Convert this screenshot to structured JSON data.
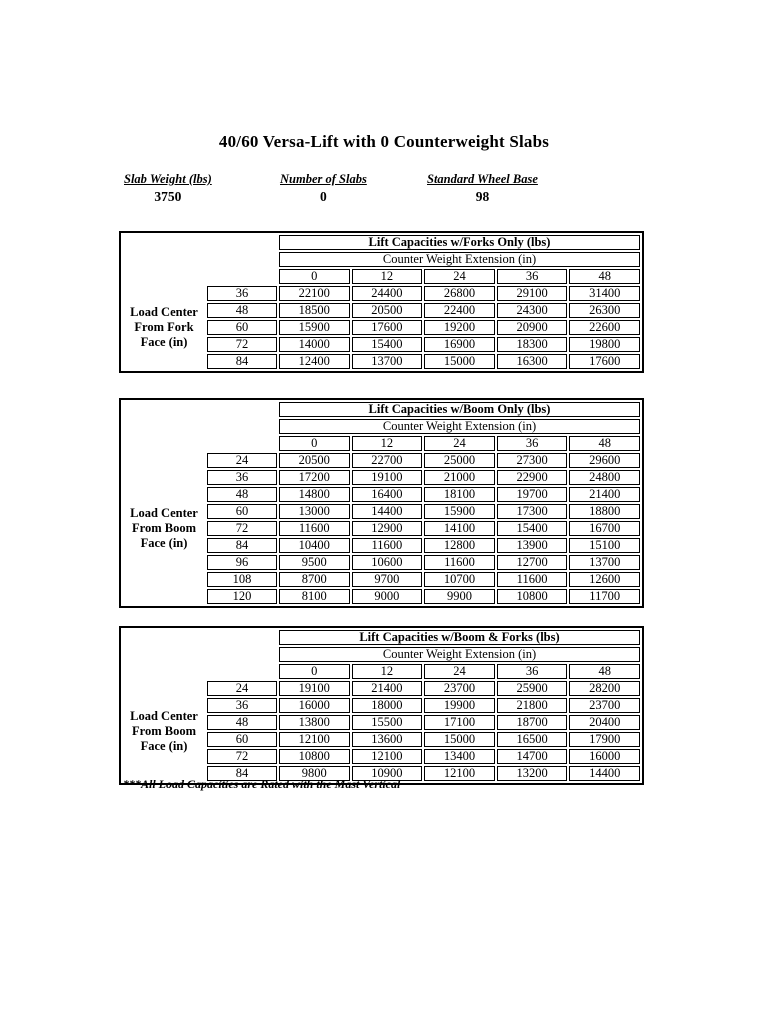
{
  "document": {
    "title": "40/60 Versa-Lift with 0 Counterweight Slabs",
    "footnote": "***All Load Capacities are Rated with the Mast Vertical"
  },
  "specs": [
    {
      "label": "Slab Weight (lbs)",
      "value": "3750"
    },
    {
      "label": "Number of Slabs",
      "value": "0"
    },
    {
      "label": "Standard Wheel Base",
      "value": "98"
    }
  ],
  "tables": [
    {
      "title": "Lift Capacities w/Forks Only (lbs)",
      "subtitle": "Counter Weight Extension (in)",
      "row_group_label_lines": [
        "Load Center",
        "From Fork",
        "Face (in)"
      ],
      "column_headers": [
        "0",
        "12",
        "24",
        "36",
        "48"
      ],
      "rows": [
        {
          "load_center": "36",
          "values": [
            "22100",
            "24400",
            "26800",
            "29100",
            "31400"
          ]
        },
        {
          "load_center": "48",
          "values": [
            "18500",
            "20500",
            "22400",
            "24300",
            "26300"
          ]
        },
        {
          "load_center": "60",
          "values": [
            "15900",
            "17600",
            "19200",
            "20900",
            "22600"
          ]
        },
        {
          "load_center": "72",
          "values": [
            "14000",
            "15400",
            "16900",
            "18300",
            "19800"
          ]
        },
        {
          "load_center": "84",
          "values": [
            "12400",
            "13700",
            "15000",
            "16300",
            "17600"
          ]
        }
      ]
    },
    {
      "title": "Lift Capacities w/Boom Only (lbs)",
      "subtitle": "Counter Weight Extension (in)",
      "row_group_label_lines": [
        "Load Center",
        "From Boom",
        "Face (in)"
      ],
      "column_headers": [
        "0",
        "12",
        "24",
        "36",
        "48"
      ],
      "rows": [
        {
          "load_center": "24",
          "values": [
            "20500",
            "22700",
            "25000",
            "27300",
            "29600"
          ]
        },
        {
          "load_center": "36",
          "values": [
            "17200",
            "19100",
            "21000",
            "22900",
            "24800"
          ]
        },
        {
          "load_center": "48",
          "values": [
            "14800",
            "16400",
            "18100",
            "19700",
            "21400"
          ]
        },
        {
          "load_center": "60",
          "values": [
            "13000",
            "14400",
            "15900",
            "17300",
            "18800"
          ]
        },
        {
          "load_center": "72",
          "values": [
            "11600",
            "12900",
            "14100",
            "15400",
            "16700"
          ]
        },
        {
          "load_center": "84",
          "values": [
            "10400",
            "11600",
            "12800",
            "13900",
            "15100"
          ]
        },
        {
          "load_center": "96",
          "values": [
            "9500",
            "10600",
            "11600",
            "12700",
            "13700"
          ]
        },
        {
          "load_center": "108",
          "values": [
            "8700",
            "9700",
            "10700",
            "11600",
            "12600"
          ]
        },
        {
          "load_center": "120",
          "values": [
            "8100",
            "9000",
            "9900",
            "10800",
            "11700"
          ]
        }
      ]
    },
    {
      "title": "Lift Capacities w/Boom & Forks (lbs)",
      "subtitle": "Counter Weight Extension (in)",
      "row_group_label_lines": [
        "Load Center",
        "From Boom",
        "Face (in)"
      ],
      "column_headers": [
        "0",
        "12",
        "24",
        "36",
        "48"
      ],
      "rows": [
        {
          "load_center": "24",
          "values": [
            "19100",
            "21400",
            "23700",
            "25900",
            "28200"
          ]
        },
        {
          "load_center": "36",
          "values": [
            "16000",
            "18000",
            "19900",
            "21800",
            "23700"
          ]
        },
        {
          "load_center": "48",
          "values": [
            "13800",
            "15500",
            "17100",
            "18700",
            "20400"
          ]
        },
        {
          "load_center": "60",
          "values": [
            "12100",
            "13600",
            "15000",
            "16500",
            "17900"
          ]
        },
        {
          "load_center": "72",
          "values": [
            "10800",
            "12100",
            "13400",
            "14700",
            "16000"
          ]
        },
        {
          "load_center": "84",
          "values": [
            "9800",
            "10900",
            "12100",
            "13200",
            "14400"
          ]
        }
      ]
    }
  ],
  "colors": {
    "page_background": "#ffffff",
    "text": "#000000",
    "table_border": "#000000"
  }
}
